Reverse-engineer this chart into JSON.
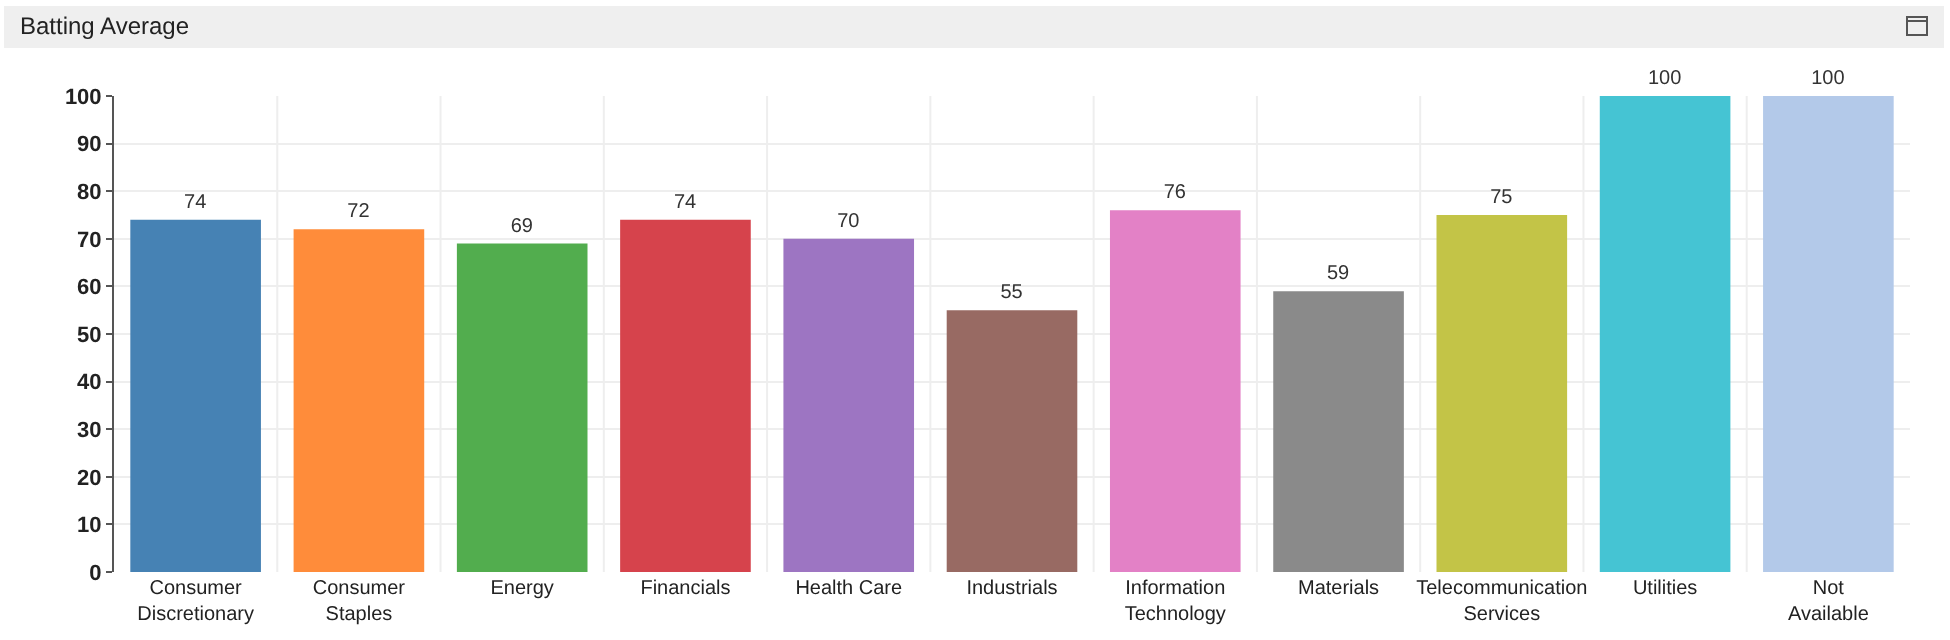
{
  "chart_data": {
    "type": "bar",
    "title": "Batting Average",
    "categories": [
      "Consumer Discretionary",
      "Consumer Staples",
      "Energy",
      "Financials",
      "Health Care",
      "Industrials",
      "Information Technology",
      "Materials",
      "Telecommunication Services",
      "Utilities",
      "Not Available"
    ],
    "values": [
      74,
      72,
      69,
      74,
      70,
      55,
      76,
      59,
      75,
      100,
      100
    ],
    "colors": [
      "#4682b4",
      "#ff8c3a",
      "#52ad4e",
      "#d6434c",
      "#9d75c2",
      "#986a63",
      "#e381c6",
      "#8a8a8a",
      "#c3c447",
      "#45c4d3",
      "#b3c9e9"
    ],
    "ylim": [
      0,
      100
    ],
    "yticks": [
      0,
      10,
      20,
      30,
      40,
      50,
      60,
      70,
      80,
      90,
      100
    ],
    "grid": true,
    "data_labels": true,
    "legend": false
  }
}
